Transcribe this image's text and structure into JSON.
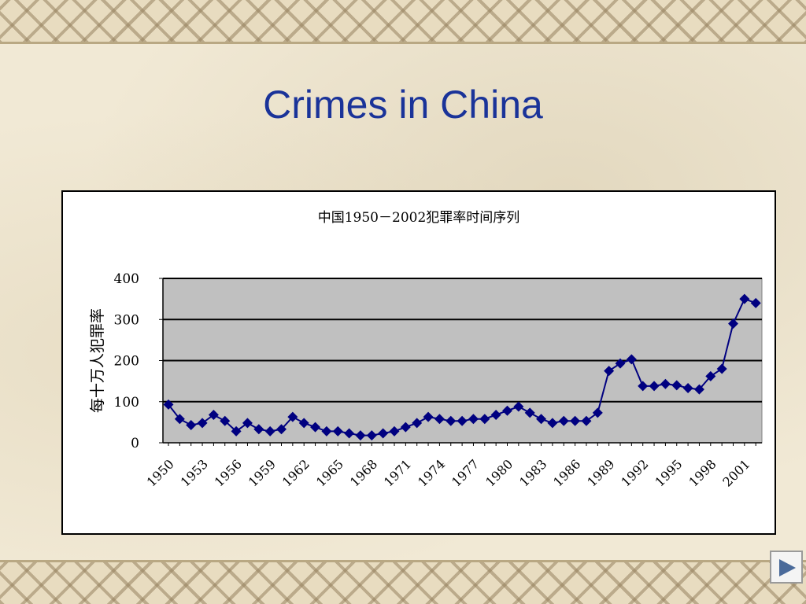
{
  "slide": {
    "title": "Crimes in China"
  },
  "nav": {
    "next_icon": "play-right-icon"
  },
  "colors": {
    "title": "#1a3399",
    "series": "#000080",
    "plot_bg": "#c0c0c0"
  },
  "chart_data": {
    "type": "line",
    "title": "中国1950－2002犯罪率时间序列",
    "ylabel": "每十万人犯罪率",
    "xlabel": "",
    "ylim": [
      0,
      400
    ],
    "yticks": [
      0,
      100,
      200,
      300,
      400
    ],
    "xticks": [
      "1950",
      "1953",
      "1956",
      "1959",
      "1962",
      "1965",
      "1968",
      "1971",
      "1974",
      "1977",
      "1980",
      "1983",
      "1986",
      "1989",
      "1992",
      "1995",
      "1998",
      "2001"
    ],
    "grid": true,
    "legend": "none",
    "x": [
      1950,
      1951,
      1952,
      1953,
      1954,
      1955,
      1956,
      1957,
      1958,
      1959,
      1960,
      1961,
      1962,
      1963,
      1964,
      1965,
      1966,
      1967,
      1968,
      1969,
      1970,
      1971,
      1972,
      1973,
      1974,
      1975,
      1976,
      1977,
      1978,
      1979,
      1980,
      1981,
      1982,
      1983,
      1984,
      1985,
      1986,
      1987,
      1988,
      1989,
      1990,
      1991,
      1992,
      1993,
      1994,
      1995,
      1996,
      1997,
      1998,
      1999,
      2000,
      2001,
      2002
    ],
    "values": [
      93,
      58,
      43,
      48,
      68,
      53,
      28,
      48,
      33,
      28,
      33,
      63,
      48,
      38,
      28,
      28,
      23,
      18,
      18,
      23,
      28,
      38,
      48,
      63,
      58,
      53,
      53,
      58,
      58,
      68,
      78,
      88,
      73,
      58,
      48,
      53,
      53,
      53,
      73,
      175,
      193,
      203,
      138,
      138,
      143,
      140,
      133,
      130,
      162,
      180,
      290,
      350,
      340
    ]
  }
}
